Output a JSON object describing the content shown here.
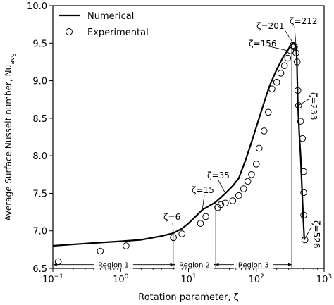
{
  "chart_data": {
    "type": "scatter",
    "x_scale": "log",
    "xlim": [
      0.1,
      1000
    ],
    "ylim": [
      6.5,
      10.0
    ],
    "xlabel": "Rotation parameter, ζ",
    "ylabel": "Average Surface Nusselt number, Nu",
    "ylabel_subscript": "avg",
    "x_ticks": [
      {
        "value": 0.1,
        "base": "10",
        "exp": "−1"
      },
      {
        "value": 1,
        "base": "10",
        "exp": "0"
      },
      {
        "value": 10,
        "base": "10",
        "exp": "1"
      },
      {
        "value": 100,
        "base": "10",
        "exp": "2"
      },
      {
        "value": 1000,
        "base": "10",
        "exp": "3"
      }
    ],
    "y_ticks": [
      6.5,
      7.0,
      7.5,
      8.0,
      8.5,
      9.0,
      9.5,
      10.0
    ],
    "legend": {
      "position": "top-left",
      "entries": [
        {
          "label": "Numerical",
          "marker": "line"
        },
        {
          "label": "Experimental",
          "marker": "open-circle"
        }
      ]
    },
    "series": [
      {
        "name": "Numerical",
        "style": "line",
        "points": [
          [
            0.1,
            6.8
          ],
          [
            0.3,
            6.83
          ],
          [
            1,
            6.86
          ],
          [
            2,
            6.88
          ],
          [
            4,
            6.93
          ],
          [
            6,
            6.97
          ],
          [
            8,
            7.03
          ],
          [
            10,
            7.1
          ],
          [
            13,
            7.2
          ],
          [
            16,
            7.28
          ],
          [
            20,
            7.33
          ],
          [
            25,
            7.38
          ],
          [
            35,
            7.5
          ],
          [
            45,
            7.6
          ],
          [
            55,
            7.7
          ],
          [
            70,
            7.95
          ],
          [
            90,
            8.25
          ],
          [
            110,
            8.5
          ],
          [
            140,
            8.8
          ],
          [
            160,
            8.95
          ],
          [
            200,
            9.15
          ],
          [
            250,
            9.32
          ],
          [
            290,
            9.4
          ],
          [
            310,
            9.45
          ],
          [
            330,
            9.48
          ],
          [
            350,
            9.5
          ],
          [
            370,
            9.48
          ],
          [
            385,
            9.45
          ],
          [
            395,
            9.3
          ],
          [
            400,
            9.1
          ],
          [
            410,
            8.7
          ],
          [
            430,
            8.3
          ],
          [
            450,
            8.0
          ],
          [
            470,
            7.6
          ],
          [
            490,
            7.2
          ],
          [
            510,
            6.88
          ]
        ]
      },
      {
        "name": "Experimental",
        "style": "marker",
        "points": [
          [
            0.12,
            6.59
          ],
          [
            0.5,
            6.73
          ],
          [
            1.2,
            6.8
          ],
          [
            6,
            6.91
          ],
          [
            8,
            6.96
          ],
          [
            15,
            7.1
          ],
          [
            18,
            7.19
          ],
          [
            27,
            7.31
          ],
          [
            30,
            7.35
          ],
          [
            35,
            7.37
          ],
          [
            45,
            7.4
          ],
          [
            55,
            7.47
          ],
          [
            65,
            7.56
          ],
          [
            75,
            7.66
          ],
          [
            85,
            7.75
          ],
          [
            100,
            7.89
          ],
          [
            110,
            8.1
          ],
          [
            130,
            8.33
          ],
          [
            150,
            8.58
          ],
          [
            170,
            8.89
          ],
          [
            200,
            8.98
          ],
          [
            230,
            9.1
          ],
          [
            260,
            9.2
          ],
          [
            290,
            9.3
          ],
          [
            320,
            9.4
          ],
          [
            345,
            9.47
          ],
          [
            365,
            9.45
          ],
          [
            385,
            9.37
          ],
          [
            400,
            9.25
          ],
          [
            410,
            8.87
          ],
          [
            420,
            8.67
          ],
          [
            450,
            8.46
          ],
          [
            480,
            8.23
          ],
          [
            500,
            7.79
          ],
          [
            500,
            7.51
          ],
          [
            500,
            7.21
          ],
          [
            520,
            6.88
          ]
        ]
      }
    ],
    "region_lines": [
      6,
      25,
      330
    ],
    "regions": [
      {
        "label": "Region 1",
        "from": 0.1,
        "to": 6
      },
      {
        "label": "Region 2",
        "from": 6,
        "to": 25
      },
      {
        "label": "Region 3",
        "from": 25,
        "to": 330
      }
    ],
    "annotations": [
      {
        "text": "ζ=6"
      },
      {
        "text": "ζ=15"
      },
      {
        "text": "ζ=35"
      },
      {
        "text": "ζ=156"
      },
      {
        "text": "ζ=201"
      },
      {
        "text": "ζ=212"
      },
      {
        "text": "ζ=233"
      },
      {
        "text": "ζ=526"
      }
    ]
  }
}
